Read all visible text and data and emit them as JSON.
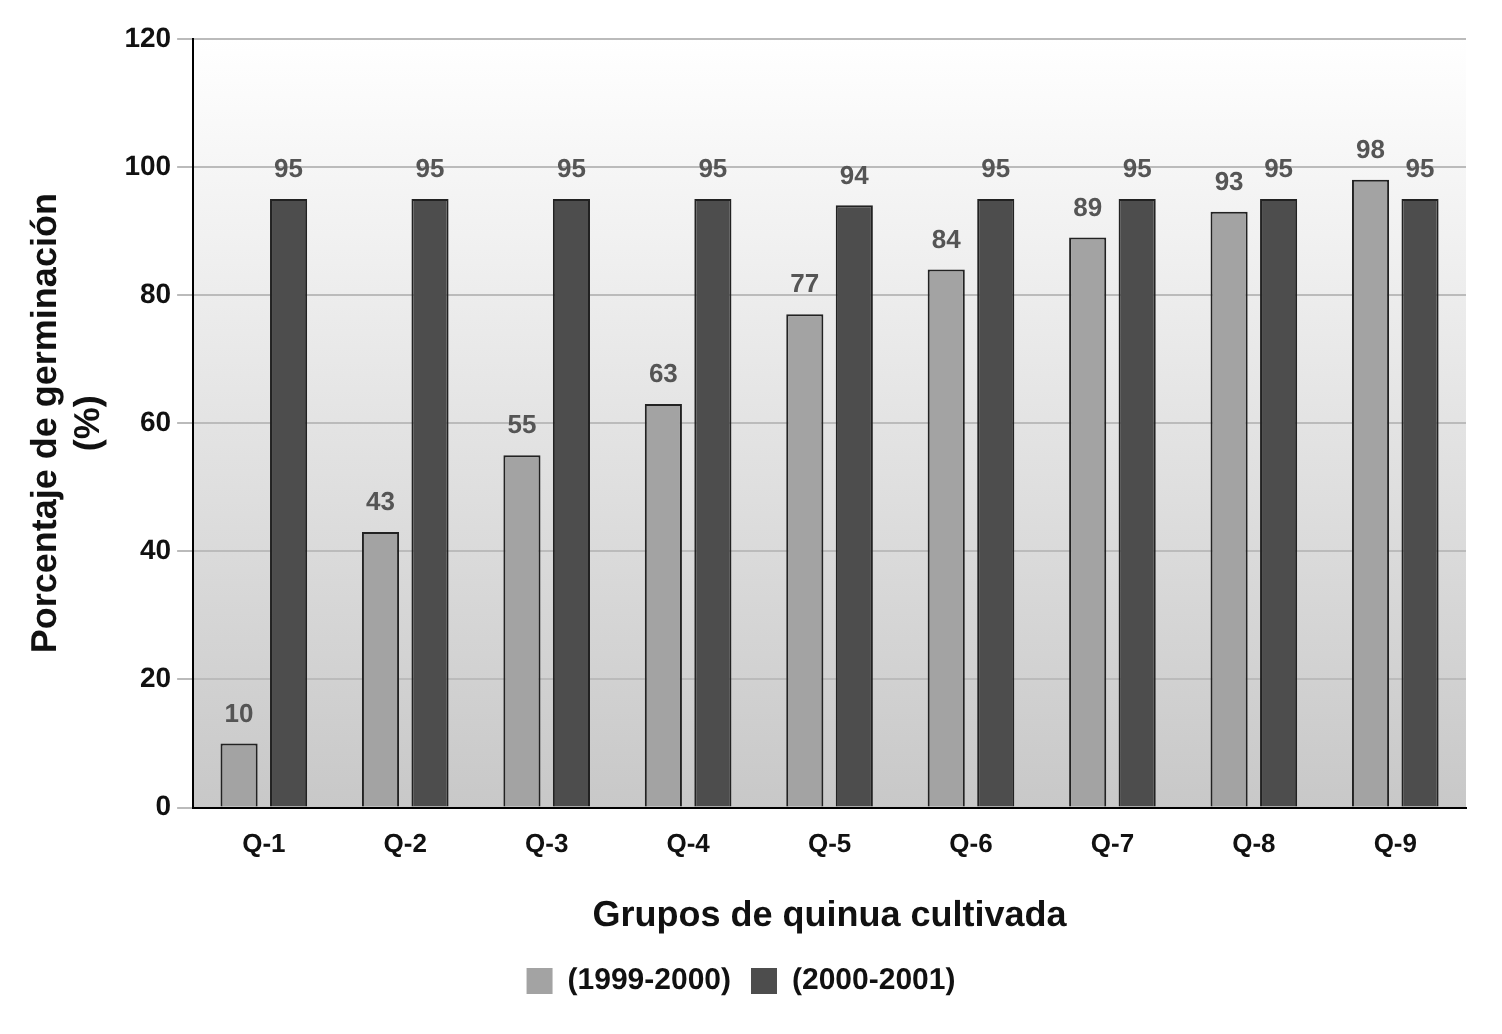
{
  "chart_data": {
    "type": "bar",
    "xlabel": "Grupos de quinua cultivada",
    "ylabel": "Porcentaje de germinación\n(%)",
    "categories": [
      "Q-1",
      "Q-2",
      "Q-3",
      "Q-4",
      "Q-5",
      "Q-6",
      "Q-7",
      "Q-8",
      "Q-9"
    ],
    "series": [
      {
        "name": "(1999-2000)",
        "color": "#a3a3a3",
        "values": [
          10,
          43,
          55,
          63,
          77,
          84,
          89,
          93,
          98
        ]
      },
      {
        "name": "(2000-2001)",
        "color": "#4d4d4d",
        "values": [
          95,
          95,
          95,
          95,
          94,
          95,
          95,
          95,
          95
        ]
      }
    ],
    "ylim": [
      0,
      120
    ],
    "yticks": [
      0,
      20,
      40,
      60,
      80,
      100,
      120
    ],
    "grid": "y",
    "legend": "bottom",
    "data_labels": true
  }
}
